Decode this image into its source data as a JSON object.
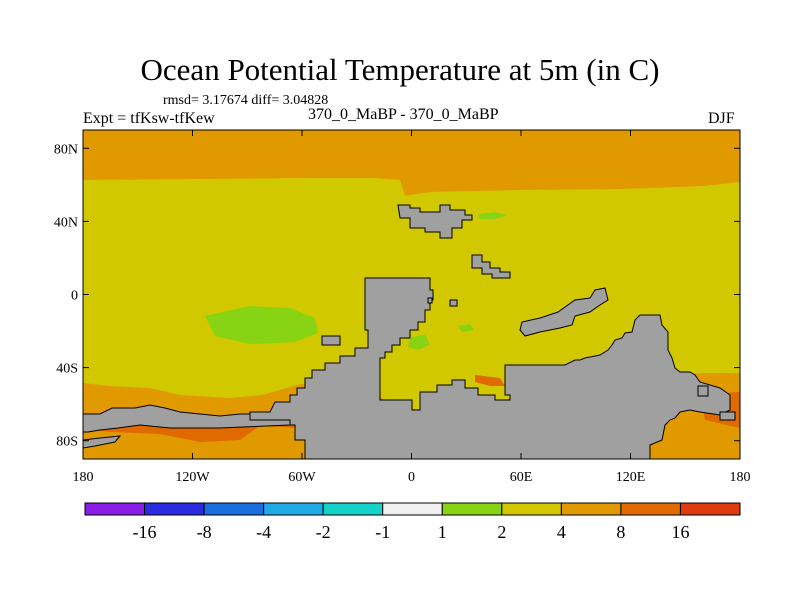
{
  "title": "Ocean Potential Temperature at 5m (in C)",
  "stats": "rmsd= 3.17674 diff= 3.04828",
  "expt": "Expt = tfKsw-tfKew",
  "period": "370_0_MaBP - 370_0_MaBP",
  "season": "DJF",
  "y_axis": {
    "ticks": [
      {
        "value": 80,
        "label": "80N"
      },
      {
        "value": 40,
        "label": "40N"
      },
      {
        "value": 0,
        "label": "0"
      },
      {
        "value": -40,
        "label": "40S"
      },
      {
        "value": -80,
        "label": "80S"
      }
    ]
  },
  "x_axis": {
    "ticks": [
      {
        "value": -180,
        "label": "180"
      },
      {
        "value": -120,
        "label": "120W"
      },
      {
        "value": -60,
        "label": "60W"
      },
      {
        "value": 0,
        "label": "0"
      },
      {
        "value": 60,
        "label": "60E"
      },
      {
        "value": 120,
        "label": "120E"
      },
      {
        "value": 180,
        "label": "180"
      }
    ]
  },
  "colorbar": {
    "colors": [
      "#8a1ee6",
      "#2a2ae0",
      "#1a6ee0",
      "#20aae6",
      "#14d2c8",
      "#f0f0f0",
      "#88d414",
      "#d2c800",
      "#e09a00",
      "#e06a00",
      "#e03a10"
    ],
    "labels": [
      "-16",
      "-8",
      "-4",
      "-2",
      "-1",
      "1",
      "2",
      "4",
      "8",
      "16"
    ]
  },
  "colors": {
    "land": "#a0a0a0",
    "ocean_main": "#d2c800",
    "warm": "#e09a00",
    "hot": "#e06a00",
    "cool": "#88d414"
  }
}
